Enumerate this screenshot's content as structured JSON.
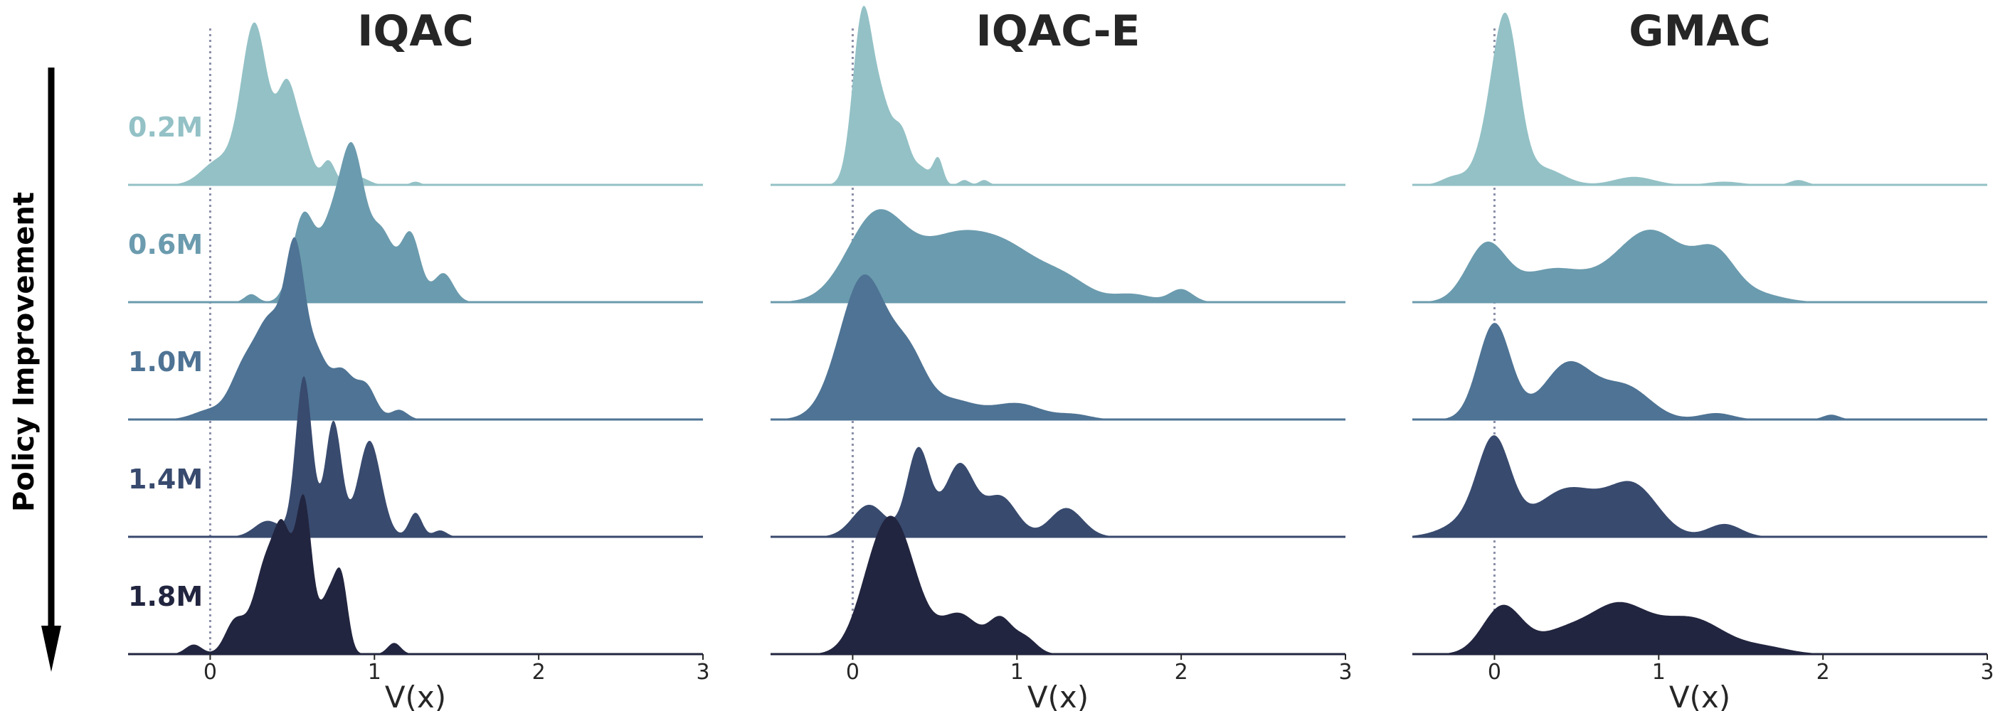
{
  "chart_data": {
    "type": "ridgeline",
    "side_label": "Policy Improvement",
    "xlabel": "V(x)",
    "xlim": [
      -0.5,
      3
    ],
    "xticks": [
      "0",
      "1",
      "2",
      "3"
    ],
    "reference_line_x": 0,
    "rows": [
      {
        "label": "0.2M",
        "color": "#93c1c6"
      },
      {
        "label": "0.6M",
        "color": "#6b9bae"
      },
      {
        "label": "1.0M",
        "color": "#4e7394"
      },
      {
        "label": "1.4M",
        "color": "#384a6e"
      },
      {
        "label": "1.8M",
        "color": "#22253f"
      }
    ],
    "panels": [
      {
        "title": "IQAC",
        "rows": [
          {
            "label": "0.2M",
            "peaks": [
              [
                0.05,
                0.15,
                0.1
              ],
              [
                0.27,
                1.0,
                0.08
              ],
              [
                0.47,
                0.6,
                0.06
              ],
              [
                0.58,
                0.2,
                0.05
              ],
              [
                0.72,
                0.15,
                0.04
              ],
              [
                0.9,
                0.05,
                0.06
              ],
              [
                1.25,
                0.02,
                0.03
              ]
            ]
          },
          {
            "label": "0.6M",
            "peaks": [
              [
                0.25,
                0.05,
                0.04
              ],
              [
                0.57,
                0.55,
                0.07
              ],
              [
                0.72,
                0.3,
                0.06
              ],
              [
                0.86,
                0.97,
                0.08
              ],
              [
                1.05,
                0.4,
                0.07
              ],
              [
                1.22,
                0.42,
                0.06
              ],
              [
                1.42,
                0.18,
                0.06
              ]
            ]
          },
          {
            "label": "1.0M",
            "peaks": [
              [
                0.0,
                0.06,
                0.1
              ],
              [
                0.2,
                0.28,
                0.08
              ],
              [
                0.37,
                0.6,
                0.09
              ],
              [
                0.52,
                0.95,
                0.06
              ],
              [
                0.65,
                0.35,
                0.06
              ],
              [
                0.8,
                0.3,
                0.07
              ],
              [
                0.95,
                0.2,
                0.06
              ],
              [
                1.15,
                0.06,
                0.05
              ]
            ]
          },
          {
            "label": "1.4M",
            "peaks": [
              [
                0.35,
                0.1,
                0.08
              ],
              [
                0.57,
                1.0,
                0.05
              ],
              [
                0.75,
                0.72,
                0.05
              ],
              [
                0.97,
                0.6,
                0.07
              ],
              [
                1.25,
                0.15,
                0.04
              ],
              [
                1.4,
                0.04,
                0.04
              ]
            ]
          },
          {
            "label": "1.8M",
            "peaks": [
              [
                -0.1,
                0.06,
                0.05
              ],
              [
                0.15,
                0.2,
                0.06
              ],
              [
                0.35,
                0.6,
                0.08
              ],
              [
                0.45,
                0.5,
                0.05
              ],
              [
                0.57,
                0.95,
                0.05
              ],
              [
                0.72,
                0.35,
                0.05
              ],
              [
                0.8,
                0.42,
                0.04
              ],
              [
                1.12,
                0.07,
                0.04
              ]
            ]
          }
        ]
      },
      {
        "title": "IQAC-E",
        "rows": [
          {
            "label": "0.2M",
            "peaks": [
              [
                0.06,
                1.05,
                0.06
              ],
              [
                0.18,
                0.45,
                0.06
              ],
              [
                0.3,
                0.3,
                0.05
              ],
              [
                0.42,
                0.1,
                0.05
              ],
              [
                0.52,
                0.16,
                0.03
              ],
              [
                0.68,
                0.03,
                0.03
              ],
              [
                0.8,
                0.03,
                0.03
              ]
            ]
          },
          {
            "label": "0.6M",
            "peaks": [
              [
                0.15,
                0.55,
                0.18
              ],
              [
                0.6,
                0.35,
                0.2
              ],
              [
                0.95,
                0.3,
                0.2
              ],
              [
                1.3,
                0.12,
                0.15
              ],
              [
                1.7,
                0.05,
                0.12
              ],
              [
                2.0,
                0.08,
                0.07
              ]
            ]
          },
          {
            "label": "1.0M",
            "peaks": [
              [
                0.07,
                0.9,
                0.15
              ],
              [
                0.35,
                0.3,
                0.1
              ],
              [
                0.6,
                0.12,
                0.15
              ],
              [
                1.0,
                0.1,
                0.15
              ],
              [
                1.35,
                0.03,
                0.1
              ]
            ]
          },
          {
            "label": "1.4M",
            "peaks": [
              [
                0.1,
                0.2,
                0.1
              ],
              [
                0.4,
                0.55,
                0.07
              ],
              [
                0.65,
                0.45,
                0.09
              ],
              [
                0.9,
                0.25,
                0.1
              ],
              [
                1.3,
                0.18,
                0.1
              ]
            ]
          },
          {
            "label": "1.8M",
            "peaks": [
              [
                0.15,
                0.5,
                0.12
              ],
              [
                0.3,
                0.55,
                0.12
              ],
              [
                0.65,
                0.25,
                0.12
              ],
              [
                0.9,
                0.2,
                0.07
              ],
              [
                1.05,
                0.1,
                0.07
              ]
            ]
          }
        ]
      },
      {
        "title": "GMAC",
        "rows": [
          {
            "label": "0.2M",
            "peaks": [
              [
                -0.25,
                0.05,
                0.07
              ],
              [
                -0.05,
                0.18,
                0.08
              ],
              [
                0.07,
                1.0,
                0.08
              ],
              [
                0.3,
                0.1,
                0.12
              ],
              [
                0.85,
                0.05,
                0.12
              ],
              [
                1.4,
                0.02,
                0.1
              ],
              [
                1.85,
                0.03,
                0.05
              ]
            ]
          },
          {
            "label": "0.6M",
            "peaks": [
              [
                -0.05,
                0.35,
                0.12
              ],
              [
                0.35,
                0.2,
                0.2
              ],
              [
                0.95,
                0.45,
                0.22
              ],
              [
                1.35,
                0.25,
                0.12
              ],
              [
                1.6,
                0.05,
                0.15
              ]
            ]
          },
          {
            "label": "1.0M",
            "peaks": [
              [
                0.0,
                0.6,
                0.1
              ],
              [
                0.45,
                0.35,
                0.15
              ],
              [
                0.8,
                0.2,
                0.15
              ],
              [
                1.35,
                0.04,
                0.1
              ],
              [
                2.05,
                0.03,
                0.05
              ]
            ]
          },
          {
            "label": "1.4M",
            "peaks": [
              [
                -0.15,
                0.1,
                0.15
              ],
              [
                0.0,
                0.55,
                0.1
              ],
              [
                0.45,
                0.3,
                0.2
              ],
              [
                0.85,
                0.3,
                0.15
              ],
              [
                1.4,
                0.08,
                0.1
              ]
            ]
          },
          {
            "label": "1.8M",
            "peaks": [
              [
                0.05,
                0.3,
                0.12
              ],
              [
                0.4,
                0.12,
                0.15
              ],
              [
                0.75,
                0.3,
                0.18
              ],
              [
                1.2,
                0.22,
                0.2
              ],
              [
                1.65,
                0.04,
                0.15
              ]
            ]
          }
        ]
      }
    ]
  }
}
